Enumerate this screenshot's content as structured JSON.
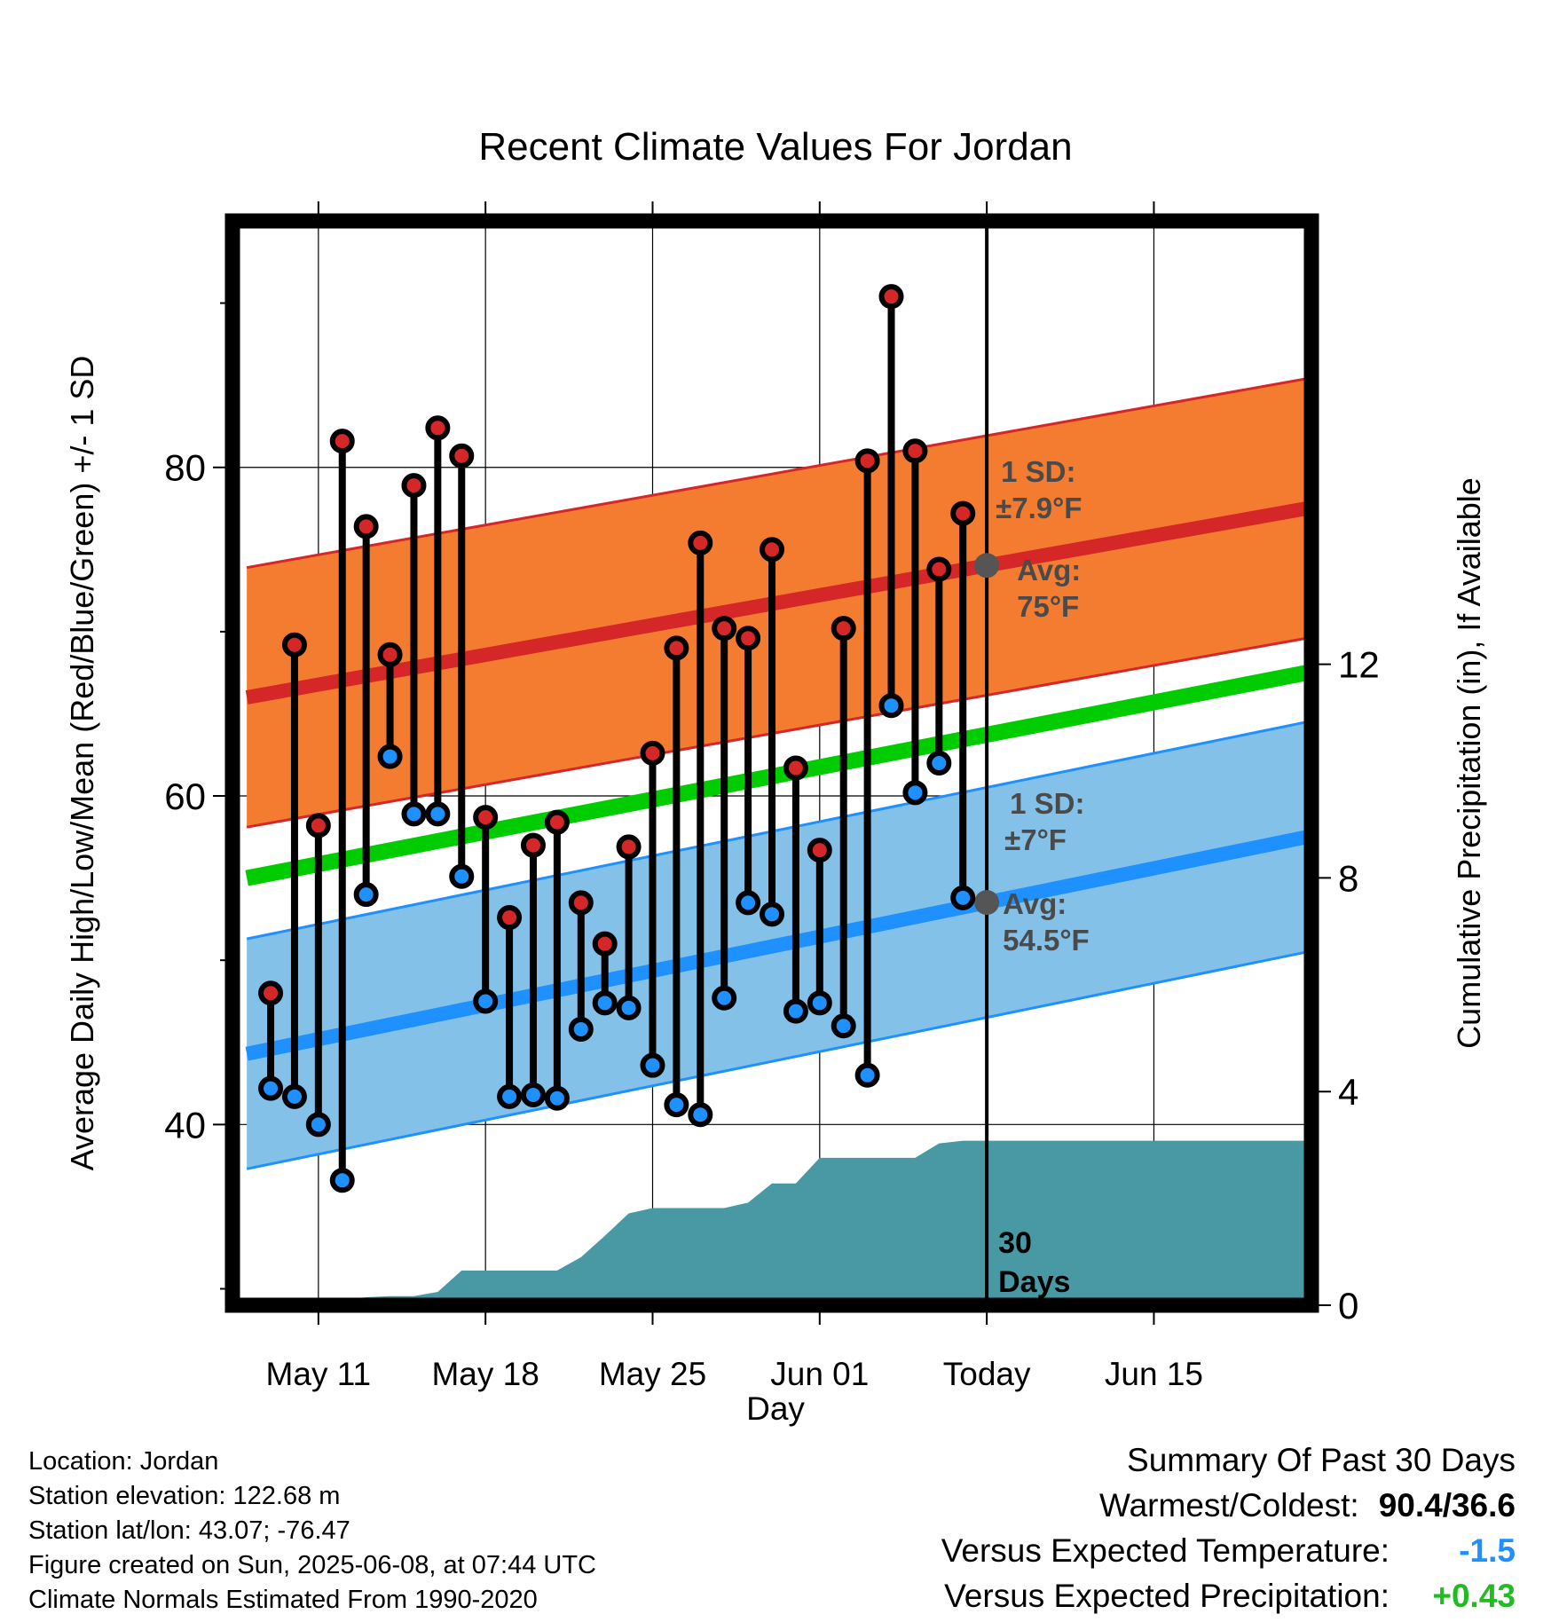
{
  "chart_data": {
    "type": "line",
    "title": "Recent Climate Values For Jordan",
    "xlabel": "Day",
    "ylabel_left": "Average Daily High/Low/Mean (Red/Blue/Green) +/- 1 SD",
    "ylabel_right": "Cumulative Precipitation (in), If Available",
    "ylim": [
      29,
      95
    ],
    "y2lim": [
      0,
      20.3
    ],
    "xlim": [
      -3.6,
      41.6
    ],
    "x_ticks": [
      {
        "x": 0,
        "label": "May 11"
      },
      {
        "x": 7,
        "label": "May 18"
      },
      {
        "x": 14,
        "label": "May 25"
      },
      {
        "x": 21,
        "label": "Jun 01"
      },
      {
        "x": 28,
        "label": "Today"
      },
      {
        "x": 35,
        "label": "Jun 15"
      }
    ],
    "y_ticks": [
      40,
      60,
      80
    ],
    "y2_ticks": [
      0,
      4,
      8,
      12
    ],
    "grid": true,
    "highs": [
      48.0,
      69.2,
      58.2,
      81.6,
      76.4,
      68.6,
      78.9,
      82.4,
      80.7,
      58.7,
      52.6,
      57.0,
      58.4,
      53.5,
      51.0,
      56.9,
      62.6,
      69.0,
      75.4,
      70.2,
      69.6,
      75.0,
      61.7,
      56.7,
      70.2,
      80.4,
      90.4,
      81.0,
      73.8,
      77.2
    ],
    "lows": [
      42.2,
      41.7,
      40.0,
      36.6,
      54.0,
      62.4,
      58.9,
      58.9,
      55.1,
      47.5,
      41.7,
      41.8,
      41.6,
      45.8,
      47.4,
      47.1,
      43.6,
      41.2,
      40.6,
      47.7,
      53.5,
      52.8,
      46.9,
      47.4,
      46.0,
      43.0,
      65.5,
      60.2,
      62.0,
      53.8
    ],
    "normals": {
      "high_avg": [
        66.0,
        77.5
      ],
      "high_sd": 7.9,
      "mean_avg": [
        55.0,
        67.5
      ],
      "low_avg": [
        44.3,
        57.5
      ],
      "low_sd": 7.0
    },
    "precip": {
      "x": [
        -2.8,
        -2,
        -1,
        0,
        1,
        2,
        3,
        4,
        5,
        6,
        7,
        8,
        9,
        10,
        11,
        12,
        13,
        14,
        15,
        16,
        17,
        18,
        19,
        20,
        21,
        22,
        23,
        24,
        25,
        26,
        27,
        28,
        41.6
      ],
      "values": [
        0.0,
        0.1,
        0.1,
        0.1,
        0.1,
        0.15,
        0.17,
        0.17,
        0.25,
        0.65,
        0.65,
        0.65,
        0.65,
        0.65,
        0.9,
        1.3,
        1.72,
        1.82,
        1.82,
        1.82,
        1.82,
        1.92,
        2.28,
        2.28,
        2.76,
        2.76,
        2.76,
        2.76,
        2.76,
        3.03,
        3.08,
        3.08,
        3.08
      ]
    },
    "today": {
      "label_days": "30",
      "label_days_unit": "Days",
      "high_sd_label": "1 SD:",
      "high_sd_value": "±7.9°F",
      "high_avg_label": "Avg:",
      "high_avg_value": "75°F",
      "low_sd_label": "1 SD:",
      "low_sd_value": "±7°F",
      "low_avg_label": "Avg:",
      "low_avg_value": "54.5°F"
    },
    "colors": {
      "high_band": "#f47c31",
      "high_line": "#d62728",
      "low_band": "#84c1e8",
      "low_line": "#1e90ff",
      "mean_line": "#00cc00",
      "precip": "#4899a3",
      "high_dot": "#d62728",
      "low_dot": "#1e90ff"
    }
  },
  "info": {
    "location": "Location: Jordan",
    "elevation": "Station elevation: 122.68 m",
    "latlon": "Station lat/lon: 43.07; -76.47",
    "created": "Figure created on Sun, 2025-06-08, at 07:44 UTC",
    "normals": "Climate Normals Estimated From 1990-2020"
  },
  "summary": {
    "title": "Summary Of Past 30 Days",
    "warm_cold_label": "Warmest/Coldest:",
    "warm_cold_value": "90.4/36.6",
    "temp_label": "Versus Expected Temperature:",
    "temp_value": "-1.5",
    "temp_color": "#1e90ff",
    "precip_label": "Versus Expected Precipitation:",
    "precip_value": "+0.43",
    "precip_color": "#22bb22"
  }
}
